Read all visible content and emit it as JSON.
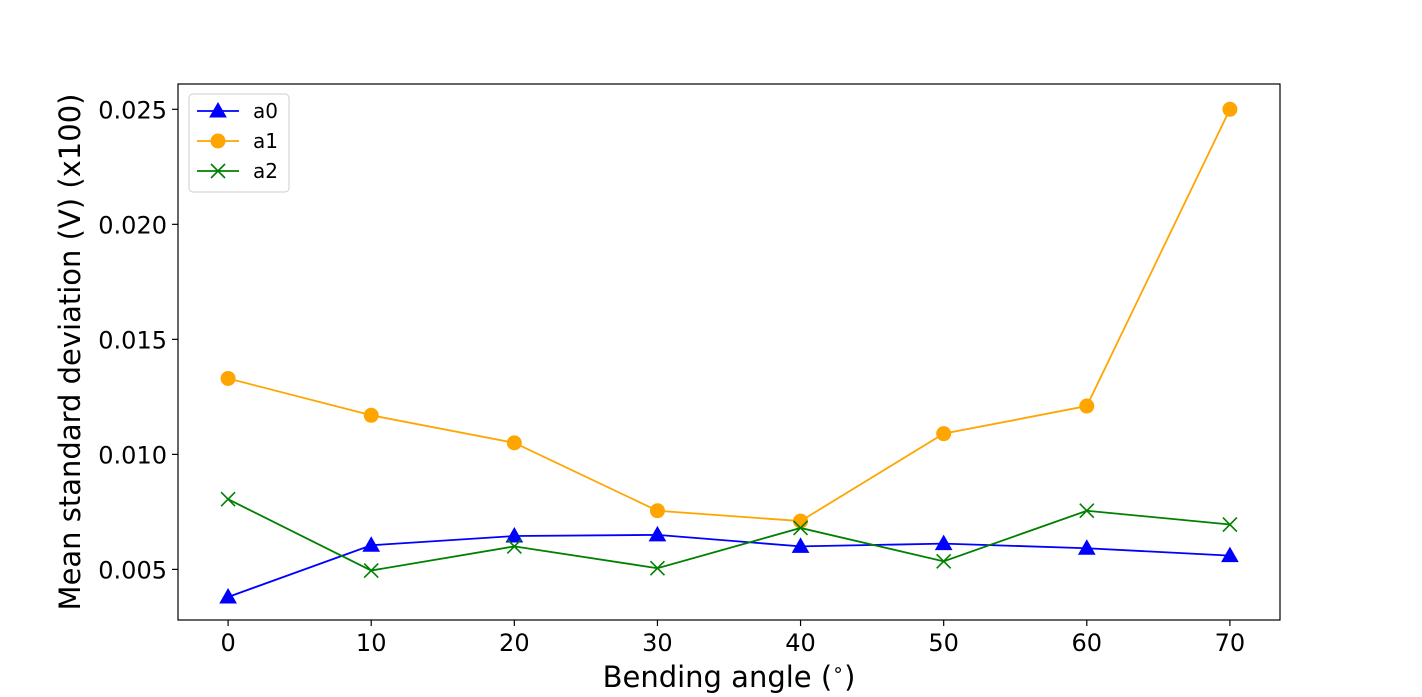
{
  "chart_data": {
    "type": "line",
    "title": "",
    "xlabel": "Bending angle ($^\\circ$)",
    "xlabel_parts": {
      "before": "Bending angle (",
      "sup": "∘",
      "after": ")"
    },
    "ylabel": "Mean standard deviation (V) (x100)",
    "x": [
      0,
      10,
      20,
      30,
      40,
      50,
      60,
      70
    ],
    "xlim": [
      -3.5,
      73.5
    ],
    "ylim": [
      0.0028,
      0.0261
    ],
    "xticks": [
      0,
      10,
      20,
      30,
      40,
      50,
      60,
      70
    ],
    "yticks": [
      0.005,
      0.01,
      0.015,
      0.02,
      0.025
    ],
    "ytick_labels": [
      "0.005",
      "0.010",
      "0.015",
      "0.020",
      "0.025"
    ],
    "grid": false,
    "legend_position": "upper left",
    "series": [
      {
        "name": "a0",
        "color": "#0000ff",
        "marker": "triangle",
        "values": [
          0.0038,
          0.00605,
          0.00645,
          0.0065,
          0.006,
          0.00612,
          0.00592,
          0.0056
        ]
      },
      {
        "name": "a1",
        "color": "#ffa500",
        "marker": "circle",
        "values": [
          0.0133,
          0.0117,
          0.0105,
          0.00755,
          0.0071,
          0.0109,
          0.0121,
          0.025
        ]
      },
      {
        "name": "a2",
        "color": "#008000",
        "marker": "x",
        "values": [
          0.00805,
          0.00495,
          0.006,
          0.00505,
          0.0068,
          0.00535,
          0.00755,
          0.00695
        ]
      }
    ]
  }
}
